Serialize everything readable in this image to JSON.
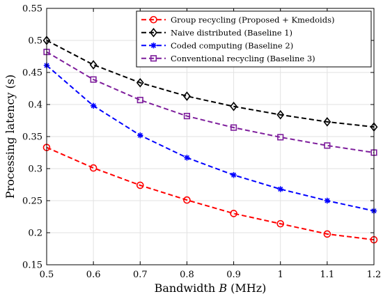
{
  "chart_data": {
    "type": "line",
    "xlabel": "Bandwidth",
    "xlabel_var": "B",
    "xlabel_unit": "(MHz)",
    "ylabel": "Processing latency (s)",
    "xlim": [
      0.5,
      1.2
    ],
    "ylim": [
      0.15,
      0.55
    ],
    "grid": true,
    "legend_position": "top-right",
    "x_ticks": [
      "0.5",
      "0.6",
      "0.7",
      "0.8",
      "0.9",
      "1",
      "1.1",
      "1.2"
    ],
    "y_ticks": [
      "0.15",
      "0.2",
      "0.25",
      "0.3",
      "0.35",
      "0.4",
      "0.45",
      "0.5",
      "0.55"
    ],
    "x": [
      0.5,
      0.6,
      0.7,
      0.8,
      0.9,
      1.0,
      1.1,
      1.2
    ],
    "series": [
      {
        "name": "Group recycling (Proposed + Kmedoids)",
        "color": "#ff0000",
        "marker": "circle",
        "values": [
          0.333,
          0.301,
          0.274,
          0.251,
          0.23,
          0.214,
          0.198,
          0.189
        ]
      },
      {
        "name": "Naive distributed (Baseline 1)",
        "color": "#000000",
        "marker": "diamond",
        "values": [
          0.5,
          0.462,
          0.434,
          0.413,
          0.397,
          0.384,
          0.373,
          0.365
        ]
      },
      {
        "name": "Coded computing (Baseline 2)",
        "color": "#0000ff",
        "marker": "asterisk",
        "values": [
          0.461,
          0.398,
          0.352,
          0.317,
          0.29,
          0.268,
          0.25,
          0.234
        ]
      },
      {
        "name": "Conventional recycling (Baseline 3)",
        "color": "#7e1e9c",
        "marker": "square",
        "values": [
          0.482,
          0.439,
          0.407,
          0.382,
          0.364,
          0.349,
          0.336,
          0.325
        ]
      }
    ]
  }
}
